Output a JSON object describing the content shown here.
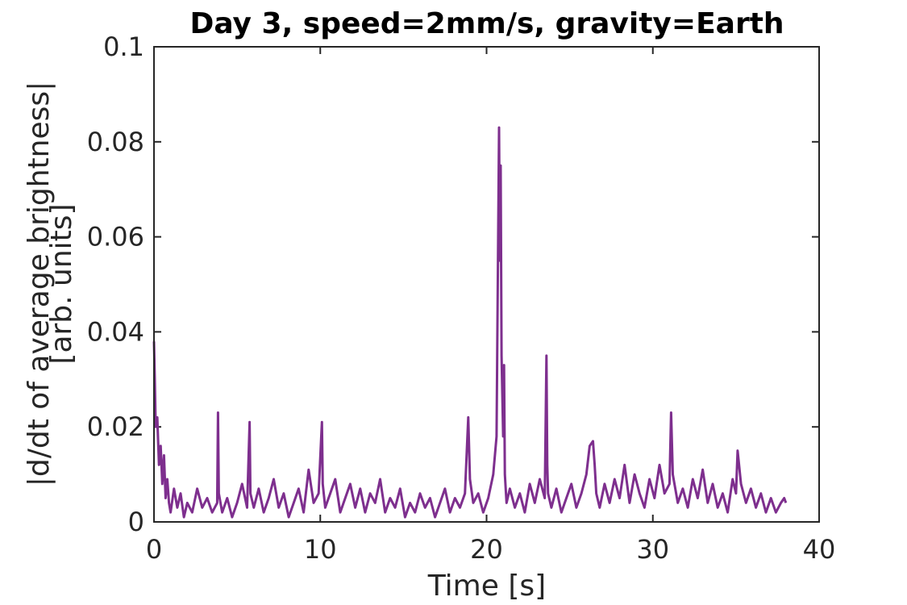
{
  "chart_data": {
    "type": "line",
    "title": "Day 3, speed=2mm/s, gravity=Earth",
    "xlabel": "Time [s]",
    "ylabel_lines": [
      "|d/dt of average brightness|",
      "[arb. units]"
    ],
    "xlim": [
      0,
      40
    ],
    "ylim": [
      0,
      0.1
    ],
    "x_ticks": [
      "0",
      "10",
      "20",
      "30",
      "40"
    ],
    "y_ticks": [
      "0",
      "0.02",
      "0.04",
      "0.06",
      "0.08",
      "0.1"
    ],
    "grid": false,
    "series": [
      {
        "color": "#7e2f8e",
        "x": [
          0.0,
          0.05,
          0.1,
          0.2,
          0.3,
          0.4,
          0.5,
          0.6,
          0.7,
          0.8,
          0.9,
          1.0,
          1.2,
          1.4,
          1.6,
          1.8,
          2.0,
          2.3,
          2.6,
          2.9,
          3.2,
          3.5,
          3.8,
          3.85,
          3.9,
          4.1,
          4.4,
          4.7,
          5.0,
          5.3,
          5.6,
          5.75,
          5.8,
          6.0,
          6.3,
          6.6,
          6.9,
          7.2,
          7.5,
          7.8,
          8.1,
          8.4,
          8.7,
          9.0,
          9.3,
          9.6,
          9.9,
          10.1,
          10.15,
          10.3,
          10.6,
          10.9,
          11.2,
          11.5,
          11.8,
          12.1,
          12.4,
          12.7,
          13.0,
          13.3,
          13.6,
          13.9,
          14.2,
          14.5,
          14.8,
          15.1,
          15.4,
          15.7,
          16.0,
          16.3,
          16.6,
          16.9,
          17.2,
          17.5,
          17.8,
          18.1,
          18.4,
          18.7,
          18.9,
          19.0,
          19.2,
          19.5,
          19.8,
          20.1,
          20.4,
          20.6,
          20.7,
          20.75,
          20.8,
          20.85,
          20.9,
          21.0,
          21.05,
          21.1,
          21.2,
          21.4,
          21.7,
          22.0,
          22.3,
          22.6,
          22.9,
          23.2,
          23.5,
          23.6,
          23.65,
          23.7,
          23.9,
          24.2,
          24.5,
          24.8,
          25.1,
          25.4,
          25.7,
          26.0,
          26.2,
          26.4,
          26.5,
          26.6,
          26.8,
          27.1,
          27.4,
          27.7,
          28.0,
          28.3,
          28.6,
          28.9,
          29.2,
          29.5,
          29.8,
          30.1,
          30.4,
          30.7,
          31.0,
          31.1,
          31.2,
          31.5,
          31.8,
          32.1,
          32.4,
          32.7,
          33.0,
          33.3,
          33.6,
          33.9,
          34.2,
          34.5,
          34.8,
          35.0,
          35.1,
          35.3,
          35.6,
          35.9,
          36.2,
          36.5,
          36.8,
          37.1,
          37.4,
          37.7,
          37.9,
          38.0
        ],
        "y": [
          0.038,
          0.03,
          0.02,
          0.022,
          0.012,
          0.016,
          0.008,
          0.014,
          0.005,
          0.009,
          0.004,
          0.002,
          0.007,
          0.003,
          0.006,
          0.001,
          0.004,
          0.002,
          0.007,
          0.003,
          0.005,
          0.002,
          0.004,
          0.023,
          0.006,
          0.002,
          0.005,
          0.001,
          0.004,
          0.008,
          0.003,
          0.021,
          0.006,
          0.003,
          0.007,
          0.002,
          0.005,
          0.009,
          0.003,
          0.006,
          0.001,
          0.004,
          0.007,
          0.002,
          0.011,
          0.004,
          0.006,
          0.021,
          0.008,
          0.003,
          0.006,
          0.009,
          0.002,
          0.005,
          0.008,
          0.003,
          0.007,
          0.002,
          0.006,
          0.004,
          0.009,
          0.002,
          0.005,
          0.003,
          0.007,
          0.001,
          0.004,
          0.002,
          0.006,
          0.003,
          0.005,
          0.001,
          0.004,
          0.007,
          0.002,
          0.005,
          0.003,
          0.006,
          0.022,
          0.009,
          0.004,
          0.006,
          0.002,
          0.005,
          0.01,
          0.018,
          0.06,
          0.083,
          0.055,
          0.075,
          0.035,
          0.018,
          0.033,
          0.01,
          0.004,
          0.007,
          0.003,
          0.006,
          0.002,
          0.008,
          0.004,
          0.009,
          0.005,
          0.035,
          0.012,
          0.006,
          0.003,
          0.007,
          0.002,
          0.005,
          0.008,
          0.003,
          0.006,
          0.01,
          0.016,
          0.017,
          0.012,
          0.006,
          0.003,
          0.008,
          0.004,
          0.009,
          0.005,
          0.012,
          0.004,
          0.01,
          0.006,
          0.003,
          0.009,
          0.005,
          0.012,
          0.006,
          0.008,
          0.023,
          0.01,
          0.004,
          0.007,
          0.003,
          0.009,
          0.005,
          0.011,
          0.004,
          0.008,
          0.003,
          0.006,
          0.002,
          0.009,
          0.006,
          0.015,
          0.008,
          0.004,
          0.007,
          0.003,
          0.006,
          0.002,
          0.005,
          0.002,
          0.004,
          0.005,
          0.004
        ]
      }
    ]
  }
}
